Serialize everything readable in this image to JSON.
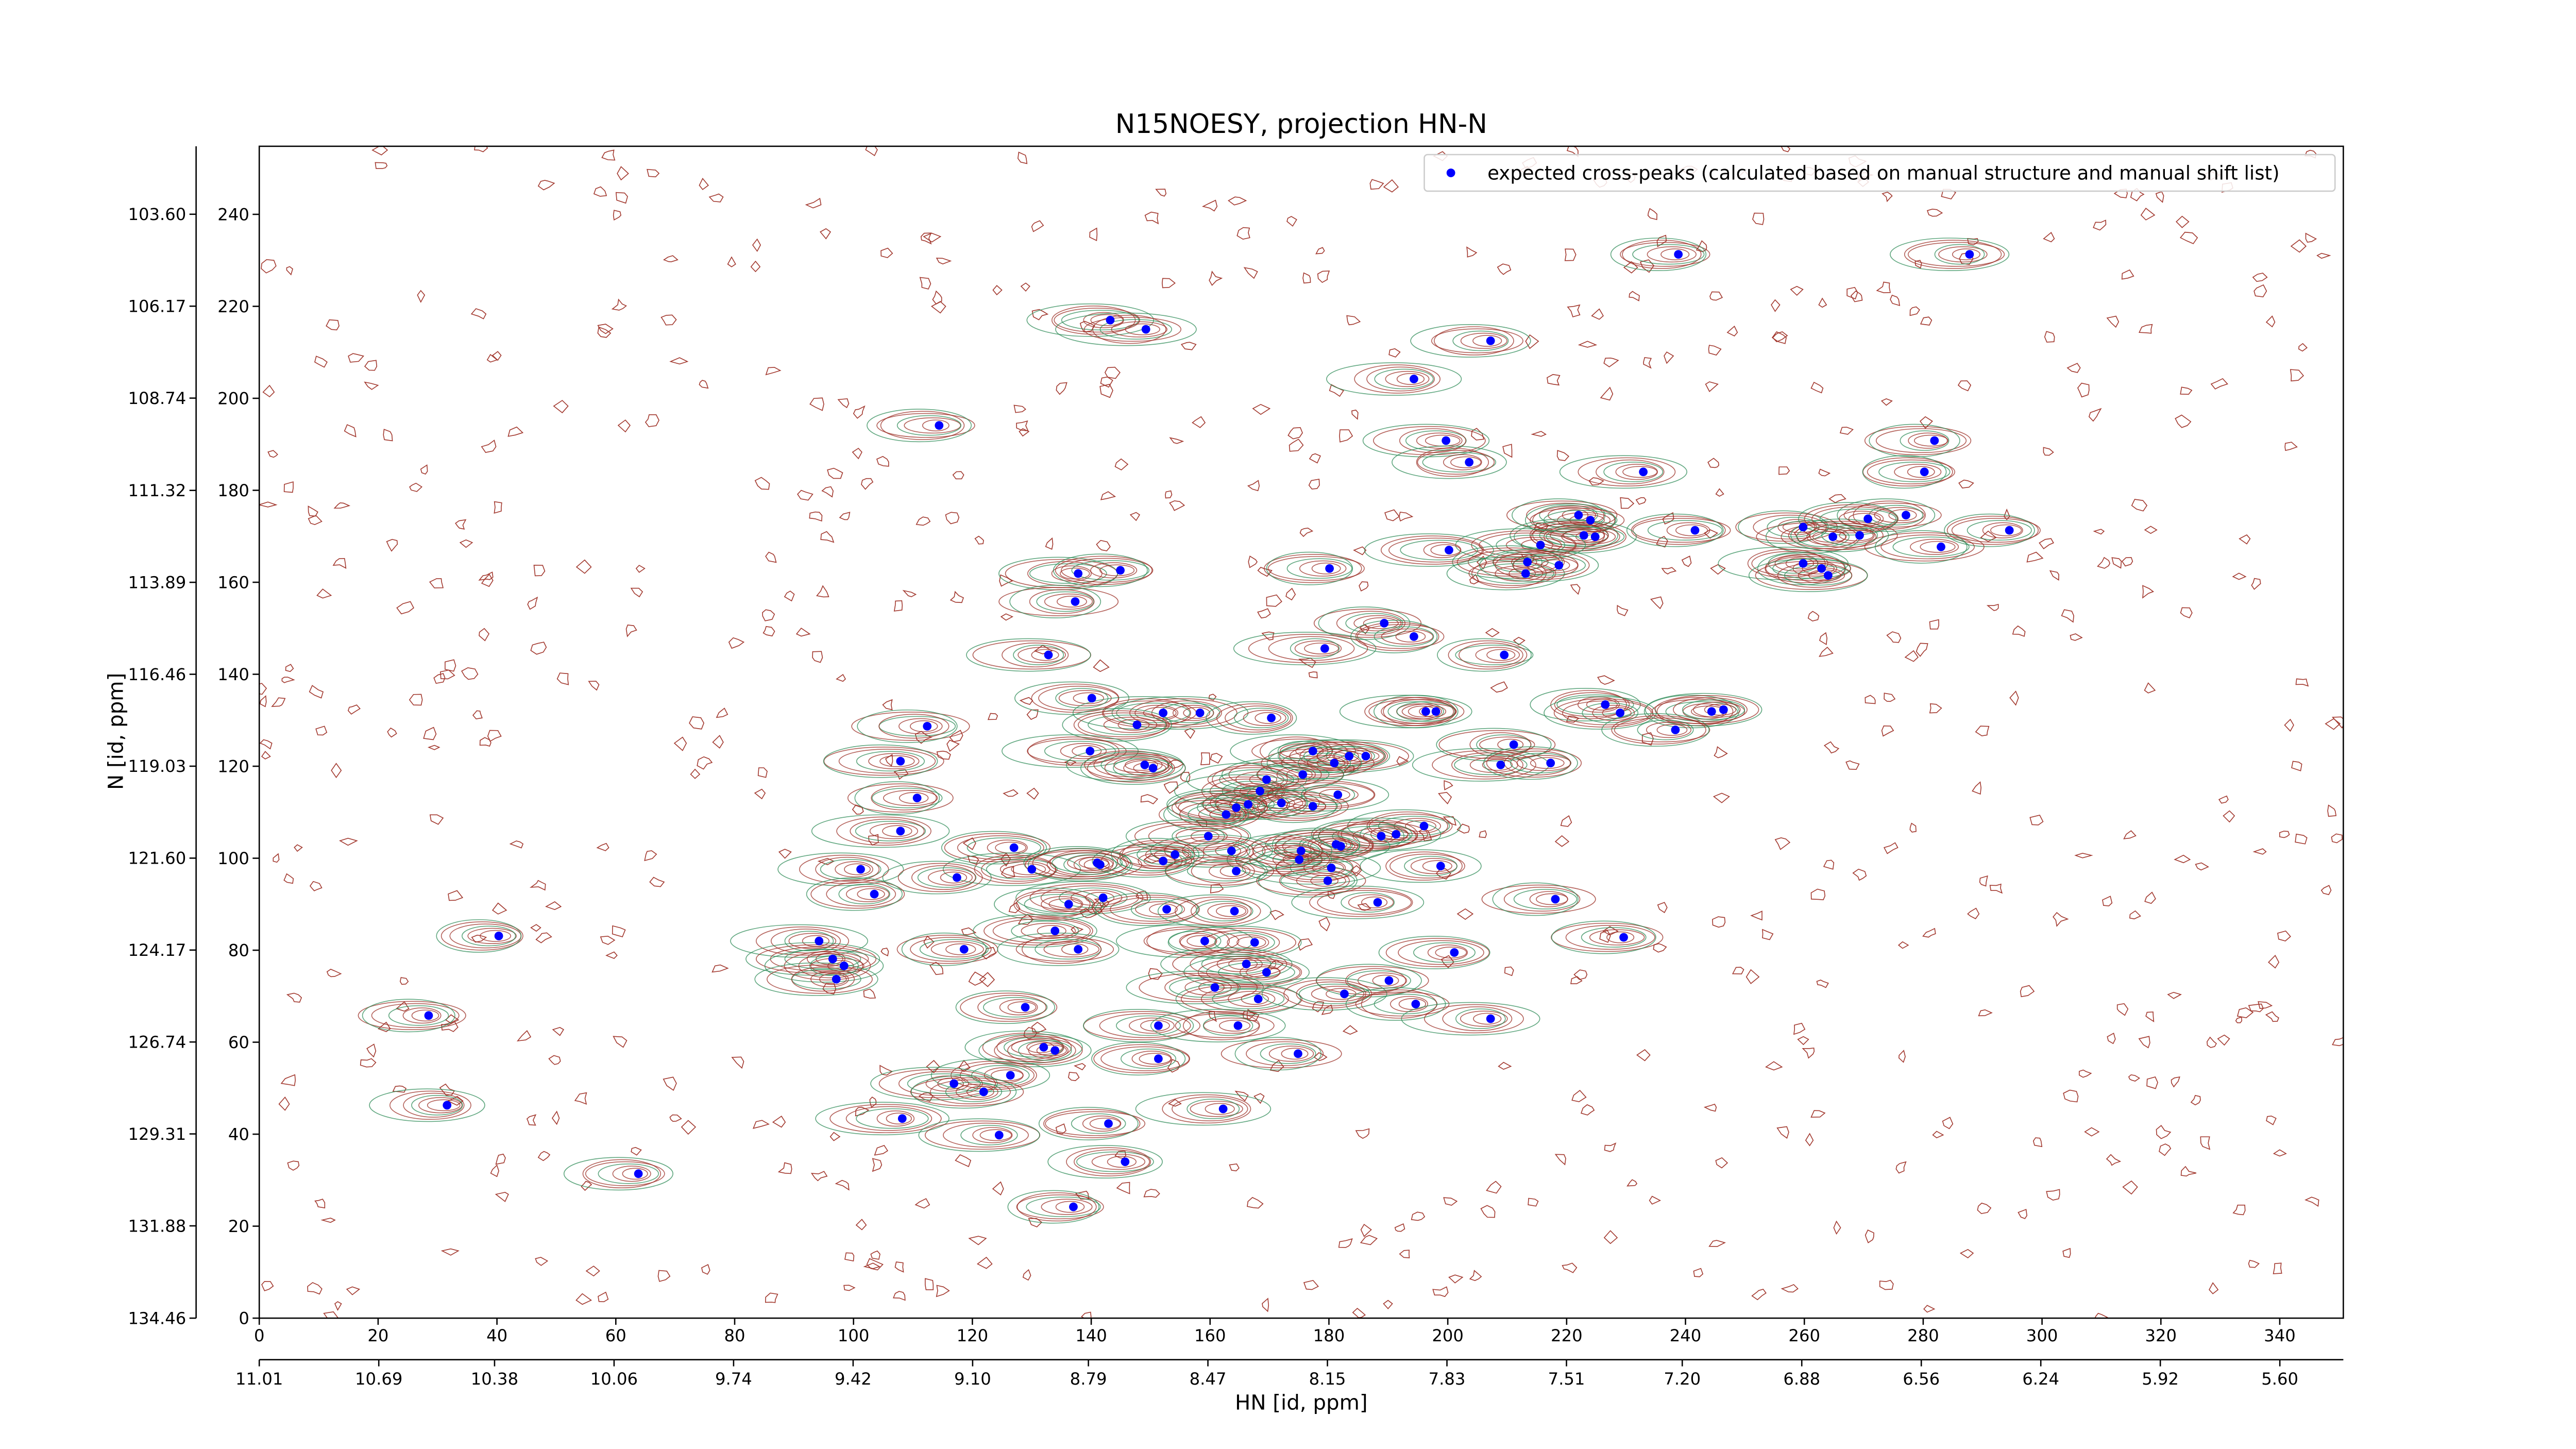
{
  "chart_data": {
    "type": "scatter",
    "title": "N15NOESY, projection HN-N",
    "xlabel": "HN [id, ppm]",
    "ylabel": "N [id, ppm]",
    "legend": "upper right",
    "xlim": [
      0,
      350.7
    ],
    "ylim": [
      0,
      254.8
    ],
    "xticks": [
      0,
      20,
      40,
      60,
      80,
      100,
      120,
      140,
      160,
      180,
      200,
      220,
      240,
      260,
      280,
      300,
      320,
      340
    ],
    "yticks": [
      0,
      20,
      40,
      60,
      80,
      100,
      120,
      140,
      160,
      180,
      200,
      220,
      240
    ],
    "x2lim": [
      11.01,
      5.43
    ],
    "x2ticks": [
      11.01,
      10.69,
      10.38,
      10.06,
      9.74,
      9.42,
      {
        "value": 9.1,
        "label": "9.10"
      },
      8.79,
      8.47,
      8.15,
      7.83,
      7.51,
      {
        "value": 7.2,
        "label": "7.20"
      },
      6.88,
      6.56,
      6.24,
      5.92,
      {
        "value": 5.6,
        "label": "5.60"
      }
    ],
    "y2lim": [
      134.46,
      101.7
    ],
    "y2ticks": [
      134.46,
      131.88,
      129.31,
      126.74,
      124.17,
      {
        "value": 121.6,
        "label": "121.60"
      },
      119.03,
      116.46,
      113.89,
      111.32,
      108.74,
      106.17,
      {
        "value": 103.6,
        "label": "103.60"
      }
    ],
    "series": [
      {
        "name": "expected cross-peaks (calculated based on manual structure and manual shift list)",
        "color": "#0000ff",
        "x": [
          143.2,
          149.2,
          114.4,
          207.2,
          194.3,
          199.7,
          203.6,
          238.8,
          287.8,
          281.9,
          280.2,
          232.9,
          277.1,
          294.5,
          241.6,
          259.8,
          264.8,
          269.3,
          270.7,
          283.0,
          222.0,
          224.0,
          222.9,
          224.8,
          215.6,
          213.4,
          213.1,
          218.7,
          200.2,
          259.8,
          262.9,
          264.0,
          137.8,
          144.9,
          180.1,
          137.3,
          189.3,
          194.3,
          179.3,
          132.8,
          209.5,
          140.1,
          152.1,
          158.3,
          170.3,
          196.3,
          198.0,
          226.5,
          229.0,
          244.4,
          246.4,
          238.3,
          147.7,
          112.4,
          139.8,
          211.1,
          177.3,
          183.4,
          186.2,
          180.9,
          175.6,
          107.9,
          149.0,
          150.4,
          208.9,
          217.3,
          169.5,
          168.4,
          166.4,
          164.4,
          172.0,
          177.3,
          181.5,
          110.7,
          162.7,
          107.9,
          159.7,
          196.0,
          188.8,
          191.3,
          181.2,
          182.0,
          175.3,
          175.0,
          127.0,
          130.0,
          141.0,
          163.6,
          152.1,
          154.1,
          101.2,
          117.4,
          141.5,
          198.8,
          180.4,
          179.8,
          164.4,
          103.5,
          142.0,
          136.2,
          152.7,
          164.1,
          188.2,
          218.1,
          133.9,
          40.3,
          229.6,
          94.2,
          159.1,
          167.5,
          118.6,
          137.8,
          201.1,
          96.5,
          98.4,
          166.1,
          169.5,
          97.1,
          160.8,
          190.1,
          168.1,
          182.6,
          194.6,
          128.9,
          28.5,
          207.2,
          151.3,
          164.7,
          132.0,
          133.9,
          151.3,
          174.8,
          126.4,
          116.9,
          121.9,
          31.6,
          162.2,
          108.2,
          142.9,
          124.5,
          145.7,
          63.8,
          137.0
        ],
        "values": [
          217.0,
          215.0,
          194.1,
          212.5,
          204.2,
          190.8,
          186.1,
          231.3,
          231.3,
          190.8,
          184.0,
          184.0,
          174.6,
          171.3,
          171.3,
          172.0,
          169.9,
          170.2,
          173.8,
          167.7,
          174.6,
          173.5,
          170.2,
          169.9,
          168.1,
          164.4,
          161.9,
          163.7,
          167.0,
          164.1,
          163.0,
          161.5,
          161.9,
          162.6,
          163.0,
          155.8,
          151.1,
          148.2,
          145.6,
          144.2,
          144.2,
          134.8,
          131.6,
          131.6,
          130.5,
          131.9,
          131.9,
          133.4,
          131.6,
          131.9,
          132.3,
          127.9,
          129.0,
          128.7,
          123.3,
          124.7,
          123.3,
          122.2,
          122.2,
          120.7,
          118.2,
          121.1,
          120.3,
          119.6,
          120.3,
          120.7,
          117.1,
          114.6,
          111.7,
          111.0,
          112.0,
          111.3,
          113.8,
          113.1,
          109.5,
          105.9,
          104.8,
          107.0,
          104.8,
          105.2,
          103.0,
          102.6,
          101.6,
          99.7,
          102.3,
          97.6,
          99.0,
          101.6,
          99.4,
          100.8,
          97.6,
          95.8,
          98.6,
          98.3,
          97.9,
          95.1,
          97.2,
          92.2,
          91.4,
          90.0,
          88.9,
          88.5,
          90.4,
          91.1,
          84.2,
          83.1,
          82.8,
          82.0,
          82.0,
          81.7,
          80.2,
          80.2,
          79.5,
          78.1,
          76.6,
          77.0,
          75.2,
          73.7,
          71.9,
          73.4,
          69.4,
          70.5,
          68.3,
          67.6,
          65.8,
          65.1,
          63.6,
          63.6,
          58.9,
          58.2,
          56.4,
          57.5,
          52.8,
          51.0,
          49.2,
          46.3,
          45.5,
          43.4,
          42.3,
          39.8,
          34.0,
          31.4,
          24.2
        ]
      }
    ]
  }
}
